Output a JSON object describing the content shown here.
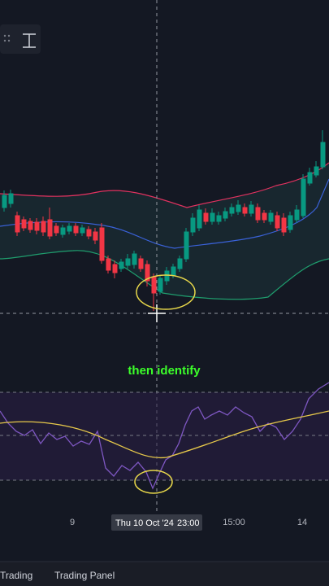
{
  "caption": "then identify",
  "x_axis": {
    "labels": [
      "9",
      "15:00",
      "14"
    ],
    "crosshair": {
      "date": "Thu 10 Oct '24",
      "time": "23:00"
    }
  },
  "bottom_bar": {
    "tabs": [
      "Trading",
      "Trading Panel"
    ]
  }
}
